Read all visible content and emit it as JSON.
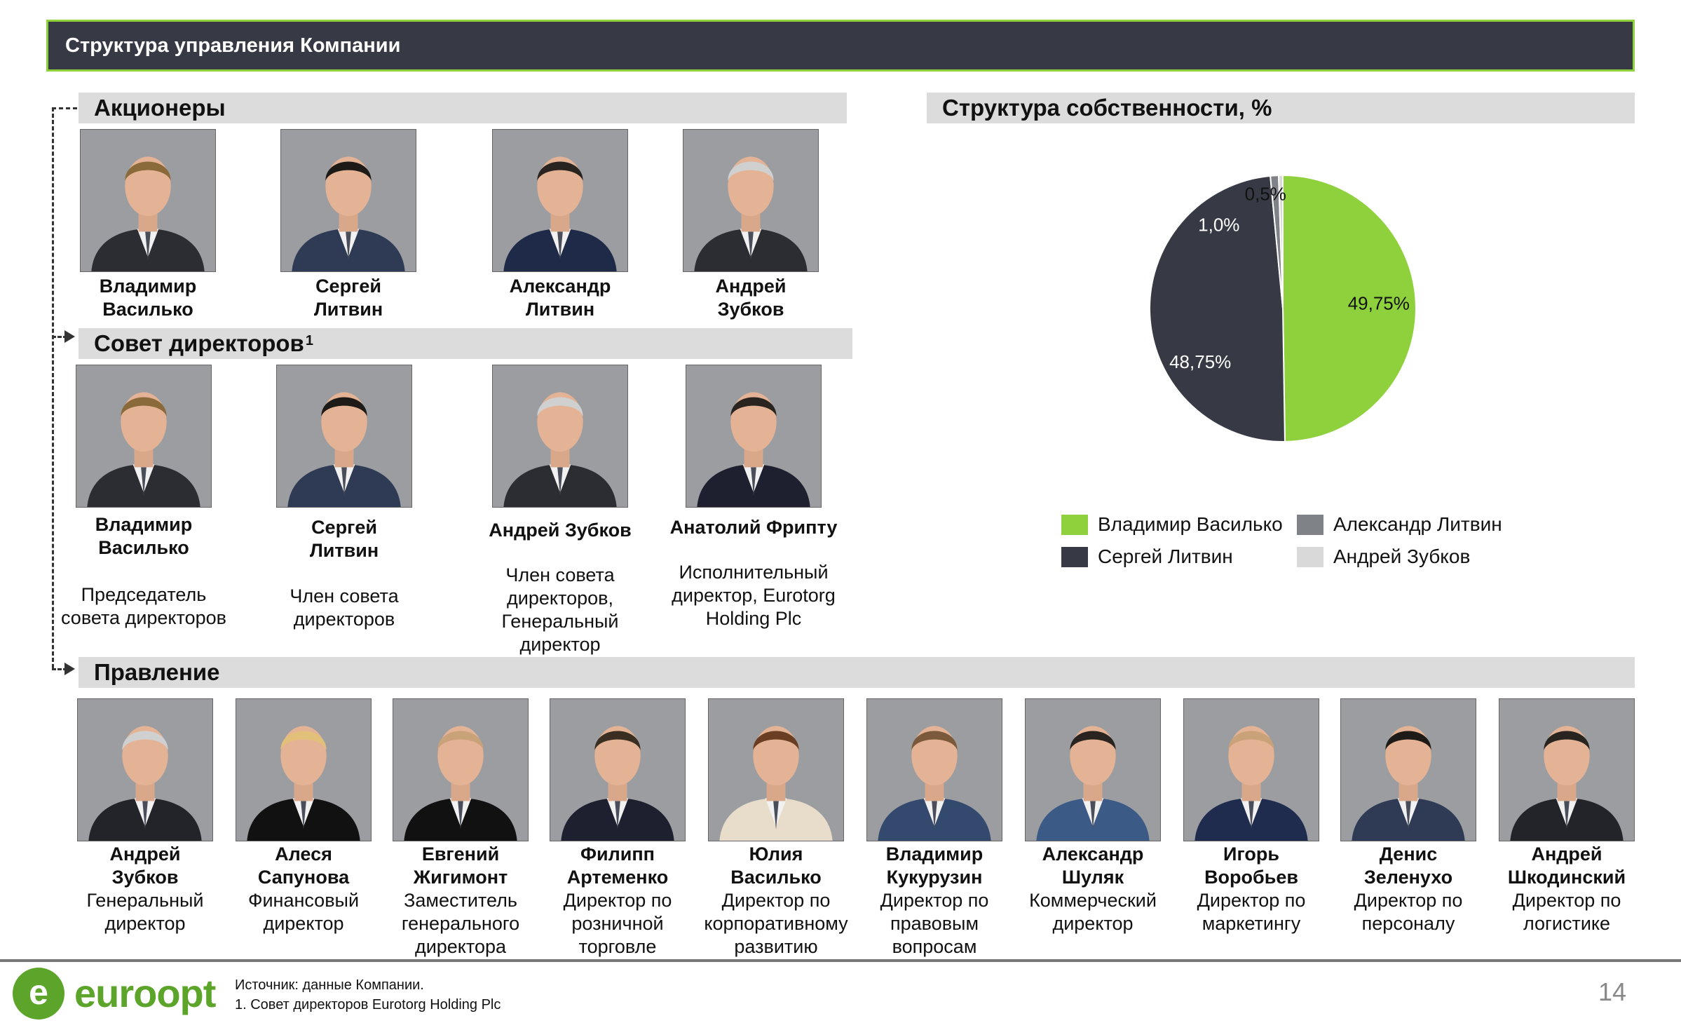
{
  "title": "Структура управления Компании",
  "sections": {
    "shareholders": "Акционеры",
    "board": "Совет директоров",
    "board_footnote": "1",
    "management": "Правление",
    "ownership": "Структура собственности, %"
  },
  "shareholders": [
    {
      "name": "Владимир\nВасилько"
    },
    {
      "name": "Сергей\nЛитвин"
    },
    {
      "name": "Александр\nЛитвин"
    },
    {
      "name": "Андрей\nЗубков"
    }
  ],
  "board": [
    {
      "name": "Владимир\nВасилько",
      "role": "Председатель\nсовета директоров"
    },
    {
      "name": "Сергей\nЛитвин",
      "role": "Член совета\nдиректоров"
    },
    {
      "name": "Андрей Зубков",
      "role": "Член совета\nдиректоров,\nГенеральный\nдиректор"
    },
    {
      "name": "Анатолий Фрипту",
      "role": "Исполнительный\nдиректор, Eurotorg\nHolding Plc"
    }
  ],
  "management": [
    {
      "name": "Андрей\nЗубков",
      "role": "Генеральный\nдиректор"
    },
    {
      "name": "Алеся\nСапунова",
      "role": "Финансовый\nдиректор"
    },
    {
      "name": "Евгений\nЖигимонт",
      "role": "Заместитель\nгенерального\nдиректора"
    },
    {
      "name": "Филипп\nАртеменко",
      "role": "Директор по\nрозничной\nторговле"
    },
    {
      "name": "Юлия\nВасилько",
      "role": "Директор по\nкорпоративному\nразвитию"
    },
    {
      "name": "Владимир\nКукурузин",
      "role": "Директор по\nправовым\nвопросам"
    },
    {
      "name": "Александр\nШуляк",
      "role": "Коммерческий\nдиректор"
    },
    {
      "name": "Игорь\nВоробьев",
      "role": "Директор по\nмаркетингу"
    },
    {
      "name": "Денис\nЗеленухо",
      "role": "Директор по\nперсоналу"
    },
    {
      "name": "Андрей\nШкодинский",
      "role": "Директор по\nлогистике"
    }
  ],
  "chart_data": {
    "type": "pie",
    "title": "Структура собственности, %",
    "legend_position": "bottom",
    "slices": [
      {
        "name": "Владимир Василько",
        "value": 49.75,
        "label": "49,75%",
        "color": "#8ed13c"
      },
      {
        "name": "Сергей Литвин",
        "value": 48.75,
        "label": "48,75%",
        "color": "#373a45"
      },
      {
        "name": "Александр Литвин",
        "value": 1.0,
        "label": "1,0%",
        "color": "#7f8286"
      },
      {
        "name": "Андрей Зубков",
        "value": 0.5,
        "label": "0,5%",
        "color": "#d9d9d9"
      }
    ]
  },
  "legend": [
    {
      "label": "Владимир Василько",
      "color": "#8ed13c"
    },
    {
      "label": "Александр Литвин",
      "color": "#7f8286"
    },
    {
      "label": "Сергей Литвин",
      "color": "#373a45"
    },
    {
      "label": "Андрей Зубков",
      "color": "#d9d9d9"
    }
  ],
  "footer": {
    "logo_text": "euroopt",
    "source_line1": "Источник: данные Компании.",
    "source_line2": "1. Совет директоров Eurotorg Holding Plc",
    "page_number": "14"
  }
}
